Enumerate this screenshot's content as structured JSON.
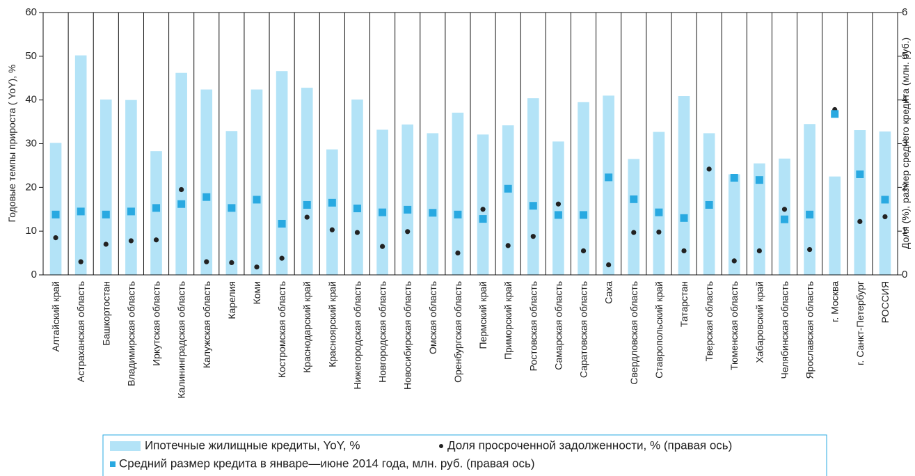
{
  "chart_data": {
    "type": "bar",
    "y_label": "Годовые темпы прироста ( YoY), %",
    "y2_label": "Доля (%), размер среднего кредита (млн. руб.)",
    "categories": [
      "Алтайский край",
      "Астраханская область",
      "Башкортостан",
      "Владимирская область",
      "Иркутская область",
      "Калининградская область",
      "Калужская область",
      "Карелия",
      "Коми",
      "Костромская область",
      "Краснодарский край",
      "Красноярский край",
      "Нижегородская область",
      "Новгородская область",
      "Новосибирская область",
      "Омская область",
      "Оренбургская область",
      "Пермский край",
      "Приморский край",
      "Ростовская область",
      "Самарская область",
      "Саратовская область",
      "Саха",
      "Свердловская область",
      "Ставропольский край",
      "Татарстан",
      "Тверская область",
      "Тюменская область",
      "Хабаровский край",
      "Челябинская область",
      "Ярославская область",
      "г. Москва",
      "г. Санкт-Петербург",
      "РОССИЯ"
    ],
    "series": [
      {
        "name": "Ипотечные жилищные кредиты, YoY, %",
        "type": "bar",
        "color": "#b3e3f7",
        "axis": "y",
        "values": [
          30.2,
          50.2,
          40.1,
          40,
          28.3,
          46.2,
          42.4,
          32.9,
          42.4,
          46.6,
          42.8,
          28.7,
          40.1,
          33.2,
          34.4,
          32.4,
          37.1,
          32.1,
          34.2,
          40.4,
          30.5,
          39.5,
          41,
          26.5,
          32.7,
          40.9,
          32.4,
          23,
          25.5,
          26.6,
          34.5,
          22.5,
          33.1,
          32.8
        ]
      },
      {
        "name": "Доля просроченной задолженности, % (правая ось)",
        "type": "scatter",
        "marker": "circle",
        "color": "#222222",
        "axis": "y2",
        "values": [
          0.85,
          0.3,
          0.7,
          0.78,
          0.8,
          1.95,
          0.3,
          0.28,
          0.18,
          0.38,
          1.32,
          1.03,
          0.97,
          0.65,
          0.99,
          1.42,
          0.5,
          1.5,
          0.67,
          0.88,
          1.62,
          0.55,
          0.23,
          0.97,
          0.98,
          0.55,
          2.42,
          0.32,
          0.55,
          1.5,
          0.58,
          3.78,
          1.22,
          1.33
        ]
      },
      {
        "name": "Средний размер кредита в январе—июне 2014 года, млн. руб. (правая ось)",
        "type": "scatter",
        "marker": "square",
        "color": "#29a9e1",
        "axis": "y2",
        "values": [
          1.38,
          1.45,
          1.38,
          1.45,
          1.53,
          1.62,
          1.78,
          1.53,
          1.72,
          1.17,
          1.6,
          1.65,
          1.52,
          1.43,
          1.49,
          1.42,
          1.38,
          1.28,
          1.97,
          1.58,
          1.37,
          1.37,
          2.23,
          1.73,
          1.43,
          1.3,
          1.6,
          2.22,
          2.17,
          1.27,
          1.38,
          3.68,
          2.3,
          1.72
        ]
      }
    ],
    "ylim": [
      0,
      60
    ],
    "yticks": [
      0,
      10,
      20,
      30,
      40,
      50,
      60
    ],
    "y2lim": [
      0,
      6
    ],
    "y2ticks": [
      0,
      1,
      2,
      3,
      4,
      5,
      6
    ]
  }
}
